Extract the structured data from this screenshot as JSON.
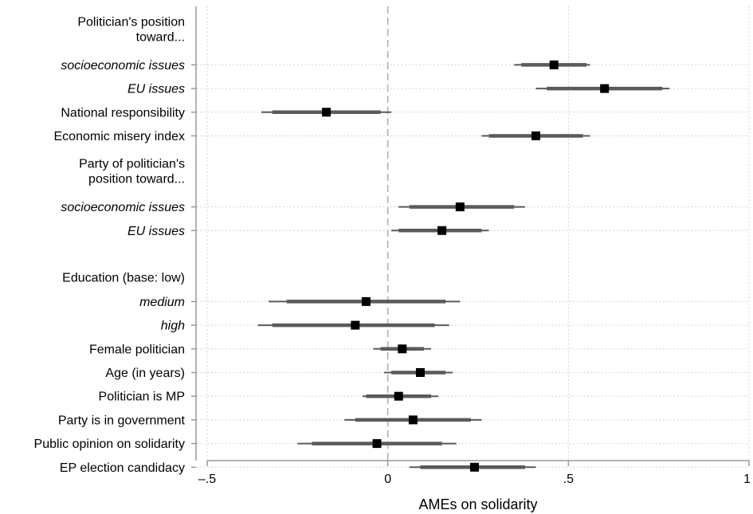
{
  "chart_data": {
    "type": "scatter",
    "subtype": "coefficient-plot",
    "xlabel": "AMEs on solidarity",
    "xlim": [
      -0.5,
      1
    ],
    "xticks": [
      {
        "value": -0.5,
        "label": "–.5"
      },
      {
        "value": 0,
        "label": "0"
      },
      {
        "value": 0.5,
        "label": ".5"
      },
      {
        "value": 1,
        "label": "1"
      }
    ],
    "reference_line": 0,
    "grid": "vertical dotted at ticks; horizontal dotted per row",
    "colors": {
      "marker": "#000000",
      "ci_thick": "#5a5a5a",
      "ci_thin": "#5a5a5a",
      "ref_line": "#b0b0b0",
      "grid": "#c8c8c8",
      "axis": "#999999"
    },
    "rows": [
      {
        "kind": "header",
        "label_lines": [
          "Politician's position",
          "toward..."
        ]
      },
      {
        "kind": "item",
        "label": "socioeconomic issues",
        "italic": true,
        "estimate": 0.46,
        "ci90": [
          0.37,
          0.55
        ],
        "ci95": [
          0.35,
          0.56
        ]
      },
      {
        "kind": "item",
        "label": "EU issues",
        "italic": true,
        "estimate": 0.6,
        "ci90": [
          0.44,
          0.76
        ],
        "ci95": [
          0.41,
          0.78
        ]
      },
      {
        "kind": "item",
        "label": "National responsibility",
        "italic": false,
        "estimate": -0.17,
        "ci90": [
          -0.32,
          -0.02
        ],
        "ci95": [
          -0.35,
          0.01
        ]
      },
      {
        "kind": "item",
        "label": "Economic misery index",
        "italic": false,
        "estimate": 0.41,
        "ci90": [
          0.28,
          0.54
        ],
        "ci95": [
          0.26,
          0.56
        ]
      },
      {
        "kind": "header",
        "label_lines": [
          "Party of politician's",
          "position toward..."
        ]
      },
      {
        "kind": "item",
        "label": "socioeconomic issues",
        "italic": true,
        "estimate": 0.2,
        "ci90": [
          0.06,
          0.35
        ],
        "ci95": [
          0.03,
          0.38
        ]
      },
      {
        "kind": "item",
        "label": "EU issues",
        "italic": true,
        "estimate": 0.15,
        "ci90": [
          0.03,
          0.26
        ],
        "ci95": [
          0.01,
          0.28
        ]
      },
      {
        "kind": "spacer"
      },
      {
        "kind": "header",
        "label_lines": [
          "Education (base: low)"
        ]
      },
      {
        "kind": "item",
        "label": "medium",
        "italic": true,
        "estimate": -0.06,
        "ci90": [
          -0.28,
          0.16
        ],
        "ci95": [
          -0.33,
          0.2
        ]
      },
      {
        "kind": "item",
        "label": "high",
        "italic": true,
        "estimate": -0.09,
        "ci90": [
          -0.32,
          0.13
        ],
        "ci95": [
          -0.36,
          0.17
        ]
      },
      {
        "kind": "item",
        "label": "Female politician",
        "italic": false,
        "estimate": 0.04,
        "ci90": [
          -0.02,
          0.1
        ],
        "ci95": [
          -0.04,
          0.12
        ]
      },
      {
        "kind": "item",
        "label": "Age (in years)",
        "italic": false,
        "estimate": 0.09,
        "ci90": [
          0.01,
          0.16
        ],
        "ci95": [
          -0.01,
          0.18
        ]
      },
      {
        "kind": "item",
        "label": "Politician is MP",
        "italic": false,
        "estimate": 0.03,
        "ci90": [
          -0.06,
          0.12
        ],
        "ci95": [
          -0.07,
          0.14
        ]
      },
      {
        "kind": "item",
        "label": "Party is in government",
        "italic": false,
        "estimate": 0.07,
        "ci90": [
          -0.09,
          0.23
        ],
        "ci95": [
          -0.12,
          0.26
        ]
      },
      {
        "kind": "item",
        "label": "Public opinion on solidarity",
        "italic": false,
        "estimate": -0.03,
        "ci90": [
          -0.21,
          0.15
        ],
        "ci95": [
          -0.25,
          0.19
        ]
      },
      {
        "kind": "item",
        "label": "EP election candidacy",
        "italic": false,
        "estimate": 0.24,
        "ci90": [
          0.09,
          0.38
        ],
        "ci95": [
          0.06,
          0.41
        ]
      }
    ]
  }
}
